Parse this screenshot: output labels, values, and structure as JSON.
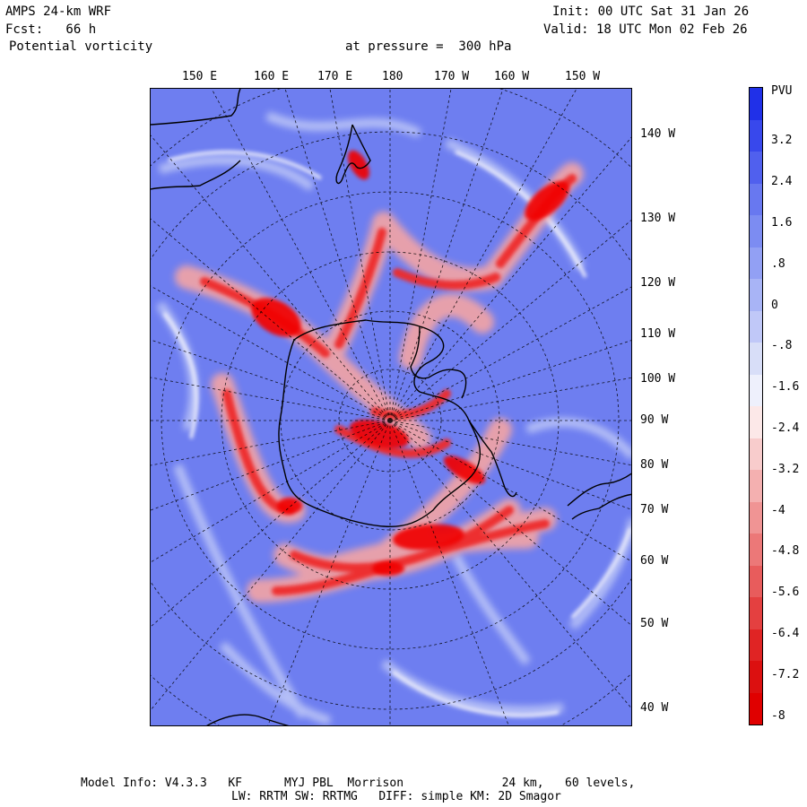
{
  "header": {
    "model": "AMPS 24-km WRF",
    "forecast": "Fcst:   66 h",
    "field": "Potential vorticity",
    "level": "at pressure =  300 hPa",
    "init": "Init: 00 UTC Sat 31 Jan 26",
    "valid": "Valid: 18 UTC Mon 02 Feb 26"
  },
  "map": {
    "top_longitudes": [
      "150 E",
      "160 E",
      "170 E",
      "180",
      "170 W",
      "160 W",
      "150 W"
    ],
    "right_longitudes": [
      "140 W",
      "130 W",
      "120 W",
      "110 W",
      "100 W",
      "90 W",
      "80 W",
      "70 W",
      "60 W",
      "50 W",
      "40 W"
    ]
  },
  "colorbar": {
    "unit": "PVU",
    "labels": [
      "3.2",
      "2.4",
      "1.6",
      ".8",
      "0",
      "-.8",
      "-1.6",
      "-2.4",
      "-3.2",
      "-4",
      "-4.8",
      "-5.6",
      "-6.4",
      "-7.2",
      "-8"
    ],
    "colors": [
      "#2030e8",
      "#3848ec",
      "#5060ee",
      "#6878f0",
      "#7c8cf2",
      "#92a0f4",
      "#a8b4f6",
      "#c0c8f8",
      "#d8def8",
      "#eef0fc",
      "#fce8e8",
      "#f8cccc",
      "#f4b0b0",
      "#f09494",
      "#ec7878",
      "#e85c5c",
      "#e44040",
      "#e02424",
      "#dc1010",
      "#e00000"
    ]
  },
  "footer": {
    "line1": "Model Info: V4.3.3   KF      MYJ PBL  Morrison              24 km,   60 levels,",
    "line2": "LW: RRTM SW: RRTMG   DIFF: simple KM: 2D Smagor"
  }
}
